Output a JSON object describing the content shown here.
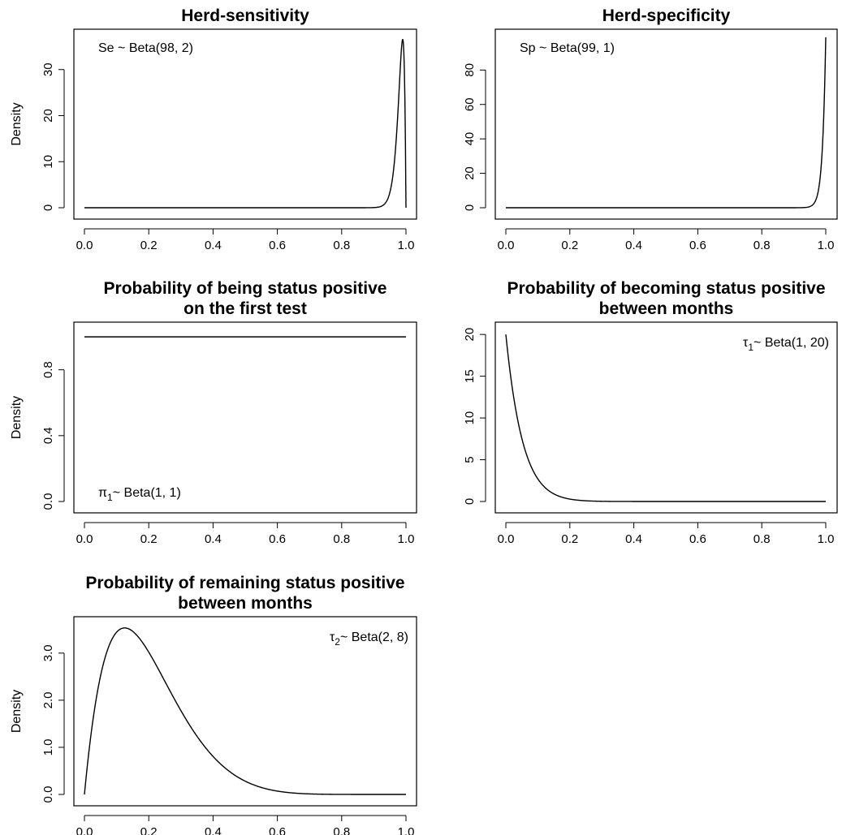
{
  "chart_data": [
    {
      "type": "line",
      "title_lines": [
        "Herd-sensitivity"
      ],
      "ylabel": "Density",
      "distribution": {
        "a": 98,
        "b": 2
      },
      "annotation": {
        "symbol": "Se",
        "subscript": "",
        "text": " ~ Beta(98, 2)",
        "position": "top-left"
      },
      "xlim": [
        0,
        1
      ],
      "ylim": [
        0,
        37
      ],
      "x_ticks": [
        0.0,
        0.2,
        0.4,
        0.6,
        0.8,
        1.0
      ],
      "x_tick_labels": [
        "0.0",
        "0.2",
        "0.4",
        "0.6",
        "0.8",
        "1.0"
      ],
      "y_ticks": [
        0,
        10,
        20,
        30
      ],
      "y_tick_labels": [
        "0",
        "10",
        "20",
        "30"
      ]
    },
    {
      "type": "line",
      "title_lines": [
        "Herd-specificity"
      ],
      "ylabel": "",
      "distribution": {
        "a": 99,
        "b": 1
      },
      "annotation": {
        "symbol": "Sp",
        "subscript": "",
        "text": " ~ Beta(99, 1)",
        "position": "top-left"
      },
      "xlim": [
        0,
        1
      ],
      "ylim": [
        0,
        99
      ],
      "x_ticks": [
        0.0,
        0.2,
        0.4,
        0.6,
        0.8,
        1.0
      ],
      "x_tick_labels": [
        "0.0",
        "0.2",
        "0.4",
        "0.6",
        "0.8",
        "1.0"
      ],
      "y_ticks": [
        0,
        20,
        40,
        60,
        80
      ],
      "y_tick_labels": [
        "0",
        "20",
        "40",
        "60",
        "80"
      ]
    },
    {
      "type": "line",
      "title_lines": [
        "Probability of being status positive",
        "on the first test"
      ],
      "ylabel": "Density",
      "distribution": {
        "a": 1,
        "b": 1
      },
      "annotation": {
        "symbol": "π",
        "subscript": "1",
        "text": "~ Beta(1, 1)",
        "position": "bottom-left"
      },
      "xlim": [
        0,
        1
      ],
      "ylim": [
        0,
        1.04
      ],
      "x_ticks": [
        0.0,
        0.2,
        0.4,
        0.6,
        0.8,
        1.0
      ],
      "x_tick_labels": [
        "0.0",
        "0.2",
        "0.4",
        "0.6",
        "0.8",
        "1.0"
      ],
      "y_ticks": [
        0.0,
        0.4,
        0.8
      ],
      "y_tick_labels": [
        "0.0",
        "0.4",
        "0.8"
      ]
    },
    {
      "type": "line",
      "title_lines": [
        "Probability of becoming status positive",
        "between months"
      ],
      "ylabel": "",
      "distribution": {
        "a": 1,
        "b": 20
      },
      "annotation": {
        "symbol": "τ",
        "subscript": "1",
        "text": "~ Beta(1, 20)",
        "position": "top-right"
      },
      "xlim": [
        0,
        1
      ],
      "ylim": [
        0,
        20.5
      ],
      "x_ticks": [
        0.0,
        0.2,
        0.4,
        0.6,
        0.8,
        1.0
      ],
      "x_tick_labels": [
        "0.0",
        "0.2",
        "0.4",
        "0.6",
        "0.8",
        "1.0"
      ],
      "y_ticks": [
        0,
        5,
        10,
        15,
        20
      ],
      "y_tick_labels": [
        "0",
        "5",
        "10",
        "15",
        "20"
      ]
    },
    {
      "type": "line",
      "title_lines": [
        "Probability of remaining status positive",
        "between months"
      ],
      "ylabel": "Density",
      "distribution": {
        "a": 2,
        "b": 8
      },
      "annotation": {
        "symbol": "τ",
        "subscript": "2",
        "text": "~ Beta(2, 8)",
        "position": "top-right"
      },
      "xlim": [
        0,
        1
      ],
      "ylim": [
        0,
        3.6
      ],
      "x_ticks": [
        0.0,
        0.2,
        0.4,
        0.6,
        0.8,
        1.0
      ],
      "x_tick_labels": [
        "0.0",
        "0.2",
        "0.4",
        "0.6",
        "0.8",
        "1.0"
      ],
      "y_ticks": [
        0.0,
        1.0,
        2.0,
        3.0
      ],
      "y_tick_labels": [
        "0.0",
        "1.0",
        "2.0",
        "3.0"
      ]
    }
  ]
}
